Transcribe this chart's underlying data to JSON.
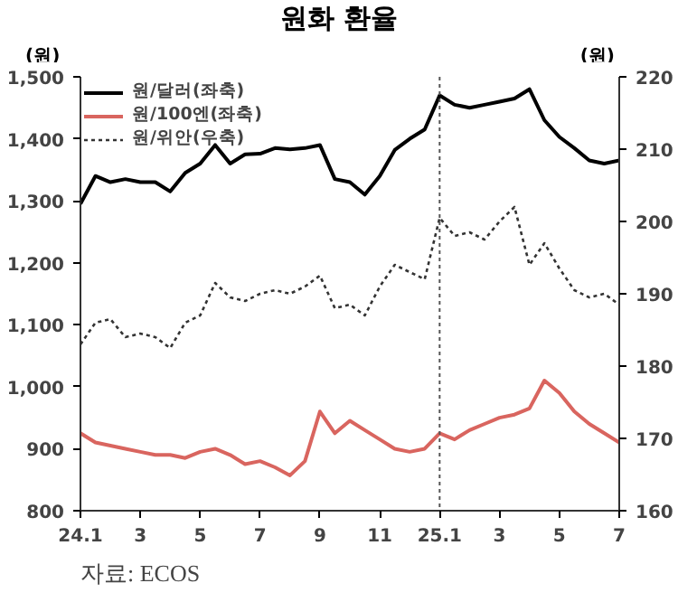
{
  "chart_data": {
    "type": "line",
    "title": "원화 환율",
    "ylabel": "(원)",
    "y2label": "(원)",
    "categories": [
      "24.1",
      null,
      null,
      null,
      "3",
      null,
      null,
      null,
      "5",
      null,
      null,
      null,
      "7",
      null,
      null,
      null,
      "9",
      null,
      null,
      null,
      "11",
      null,
      null,
      null,
      "25.1",
      null,
      null,
      null,
      "3",
      null,
      null,
      null,
      "5",
      null,
      null,
      null,
      "7"
    ],
    "series": [
      {
        "name": "원/달러(좌축)",
        "color": "#000000",
        "line_style": "solid",
        "values": [
          1295,
          1340,
          1330,
          1335,
          1330,
          1330,
          1315,
          1345,
          1360,
          1390,
          1360,
          1375,
          1376,
          1385,
          1383,
          1385,
          1390,
          1335,
          1330,
          1310,
          1340,
          1382,
          1400,
          1415,
          1470,
          1455,
          1450,
          1455,
          1460,
          1465,
          1480,
          1430,
          1403,
          1385,
          1365,
          1360,
          1365
        ]
      },
      {
        "name": "원/100엔(좌축)",
        "color": "#d9655f",
        "line_style": "solid",
        "values": [
          925,
          910,
          905,
          900,
          895,
          890,
          890,
          885,
          895,
          900,
          890,
          875,
          880,
          870,
          857,
          880,
          960,
          925,
          945,
          930,
          915,
          900,
          895,
          900,
          925,
          915,
          930,
          940,
          950,
          955,
          965,
          1010,
          990,
          960,
          940,
          925,
          910
        ]
      },
      {
        "name": "원/위안(우축)",
        "color": "#333333",
        "line_style": "dotted",
        "axis": "y2",
        "values": [
          183,
          186,
          186.5,
          184,
          184.5,
          184,
          182.5,
          186,
          187,
          191.5,
          189.5,
          189,
          190,
          190.5,
          190,
          191,
          192.5,
          188,
          188.5,
          187,
          191,
          194,
          193,
          192,
          200.5,
          198,
          198.5,
          197.5,
          200,
          202,
          194,
          197,
          193.5,
          190.5,
          189.5,
          190,
          188.5
        ]
      }
    ],
    "ylim": [
      800,
      1500
    ],
    "yticks": [
      {
        "value": 800,
        "label": "800"
      },
      {
        "value": 900,
        "label": "900"
      },
      {
        "value": 1000,
        "label": "1,000"
      },
      {
        "value": 1100,
        "label": "1,100"
      },
      {
        "value": 1200,
        "label": "1,200"
      },
      {
        "value": 1300,
        "label": "1,300"
      },
      {
        "value": 1400,
        "label": "1,400"
      },
      {
        "value": 1500,
        "label": "1,500"
      }
    ],
    "y2lim": [
      160,
      220
    ],
    "y2ticks": [
      160,
      170,
      180,
      190,
      200,
      210,
      220
    ],
    "ref_lines": [
      {
        "axis": "x",
        "value": "25.1",
        "color": "#555555",
        "line_style": "dotted"
      }
    ],
    "annotations": [
      "자료: ECOS"
    ],
    "grid": false,
    "legend": "top left"
  }
}
